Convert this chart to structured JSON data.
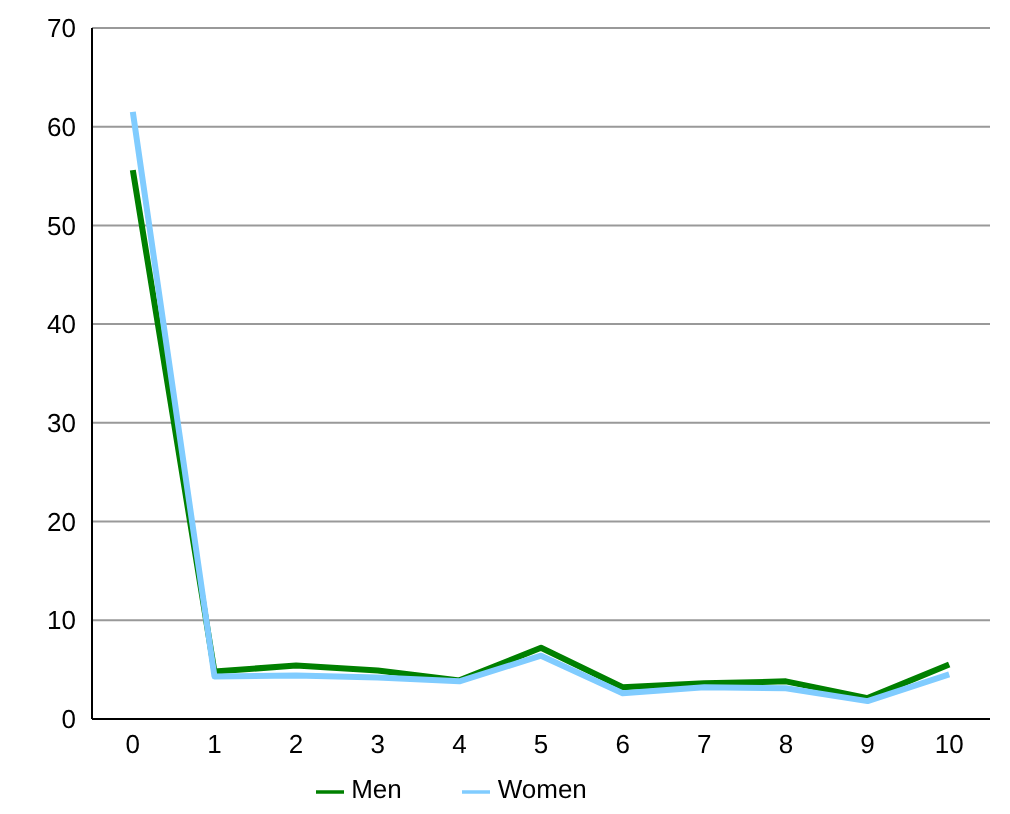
{
  "chart_data": {
    "type": "line",
    "x": [
      0,
      1,
      2,
      3,
      4,
      5,
      6,
      7,
      8,
      9,
      10
    ],
    "series": [
      {
        "name": "Men",
        "color": "#008000",
        "values": [
          55.6,
          4.8,
          5.4,
          4.9,
          3.9,
          7.2,
          3.2,
          3.6,
          3.8,
          2.1,
          5.5
        ]
      },
      {
        "name": "Women",
        "color": "#80ccff",
        "values": [
          61.5,
          4.3,
          4.4,
          4.2,
          3.8,
          6.4,
          2.6,
          3.2,
          3.1,
          1.8,
          4.5
        ]
      }
    ],
    "xlim": [
      -0.5,
      10.5
    ],
    "xticks": [
      0,
      1,
      2,
      3,
      4,
      5,
      6,
      7,
      8,
      9,
      10
    ],
    "ylim": [
      0,
      70
    ],
    "yticks": [
      0,
      10,
      20,
      30,
      40,
      50,
      60,
      70
    ],
    "grid": "y",
    "legend": "bottom",
    "marker": "none",
    "line_style": "solid"
  }
}
